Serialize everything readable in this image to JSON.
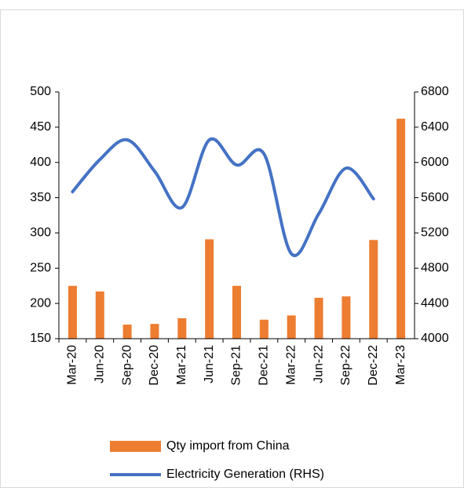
{
  "chart_data": {
    "type": "bar-line",
    "categories": [
      "Mar-20",
      "Jun-20",
      "Sep-20",
      "Dec-20",
      "Mar-21",
      "Jun-21",
      "Sep-21",
      "Dec-21",
      "Mar-22",
      "Jun-22",
      "Sep-22",
      "Dec-22",
      "Mar-23"
    ],
    "series": [
      {
        "name": "Qty import from China",
        "type": "bar",
        "color": "#ed7d31",
        "values": [
          225,
          217,
          170,
          171,
          179,
          291,
          225,
          177,
          183,
          208,
          210,
          290,
          462
        ]
      },
      {
        "name": "Electricity Generation (RHS)",
        "type": "line",
        "axis": "y2",
        "color": "#4472c4",
        "values": [
          5668,
          6033,
          6256,
          5900,
          5489,
          6256,
          5971,
          6096,
          4963,
          5418,
          5935,
          5587,
          null
        ]
      }
    ],
    "ylim": [
      150,
      500
    ],
    "yticks": [
      150,
      200,
      250,
      300,
      350,
      400,
      450,
      500
    ],
    "y2lim": [
      4000,
      6800
    ],
    "y2ticks": [
      4000,
      4400,
      4800,
      5200,
      5600,
      6000,
      6400,
      6800
    ],
    "grid": false,
    "legend": "bottom"
  }
}
